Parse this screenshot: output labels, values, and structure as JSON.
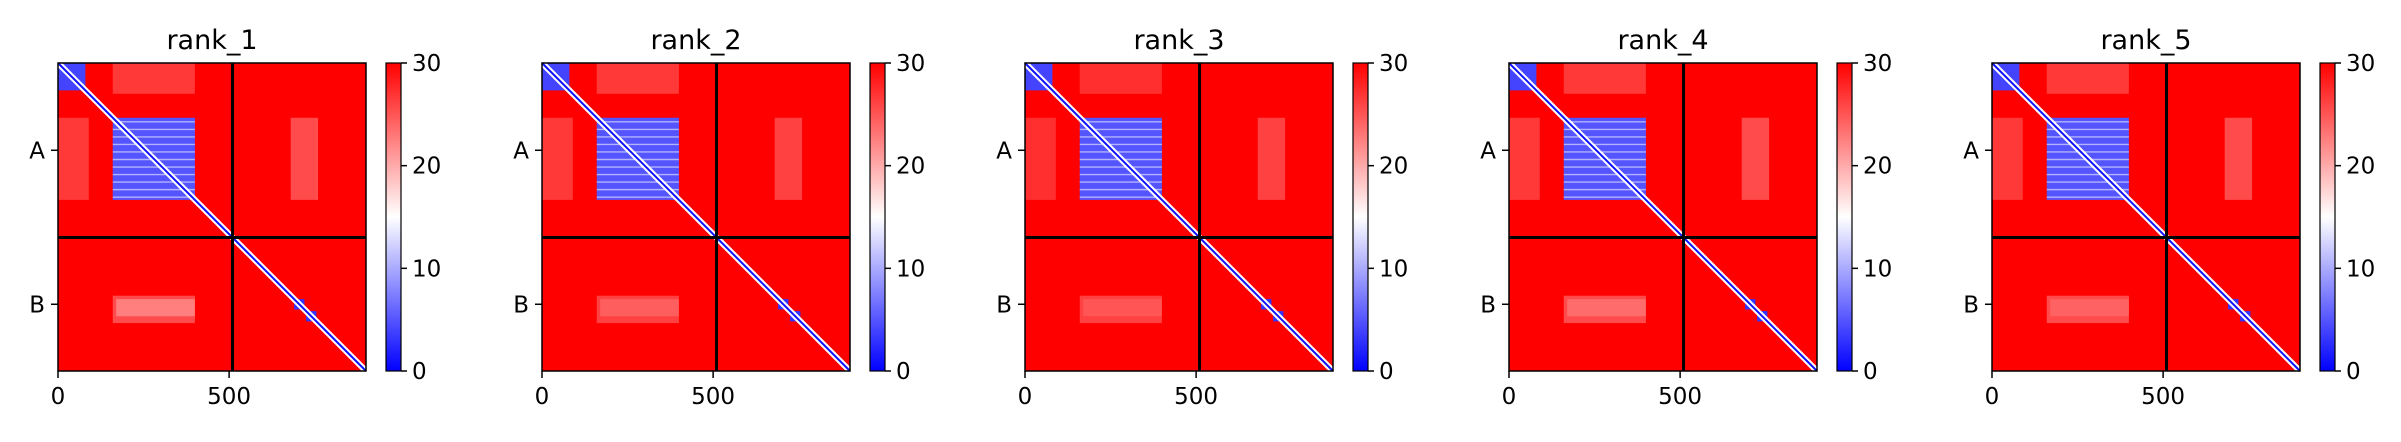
{
  "chart_data": {
    "type": "heatmap",
    "description_scale": "PAE matrix per rank; colorbar 0 (blue) to 30 (red)",
    "colors": {
      "low": "#0000ff",
      "mid": "#ffffff",
      "high": "#ff0000",
      "divider": "#000000"
    },
    "vmin": 0,
    "vmax": 30,
    "colorbar_ticks": [
      "0",
      "10",
      "20",
      "30"
    ],
    "colorbar_tick_values": [
      0,
      10,
      20,
      30
    ],
    "x_ticks": [
      "0",
      "500"
    ],
    "x_tick_values": [
      0,
      500
    ],
    "axis_range": [
      0,
      900
    ],
    "chain_break": 510,
    "y_labels": [
      "A",
      "B"
    ],
    "y_label_positions": [
      255,
      705
    ],
    "panels": [
      {
        "title": "rank_1",
        "blocks": [
          {
            "x": [
              0,
              80
            ],
            "y": [
              0,
              80
            ],
            "value": 4
          },
          {
            "x": [
              160,
              400
            ],
            "y": [
              160,
              400
            ],
            "value": 5
          },
          {
            "x": [
              690,
              720
            ],
            "y": [
              690,
              720
            ],
            "value": 3
          },
          {
            "x": [
              725,
              755
            ],
            "y": [
              725,
              755
            ],
            "value": 3
          }
        ],
        "lighter": [
          {
            "x": [
              160,
              400
            ],
            "y": [
              0,
              90
            ],
            "value": 24
          },
          {
            "x": [
              0,
              90
            ],
            "y": [
              160,
              400
            ],
            "value": 24
          },
          {
            "x": [
              680,
              760
            ],
            "y": [
              160,
              400
            ],
            "value": 22
          },
          {
            "x": [
              160,
              400
            ],
            "y": [
              680,
              760
            ],
            "value": 22
          },
          {
            "x": [
              170,
              400
            ],
            "y": [
              690,
              740
            ],
            "value": 20
          }
        ]
      },
      {
        "title": "rank_2",
        "blocks": [
          {
            "x": [
              0,
              80
            ],
            "y": [
              0,
              80
            ],
            "value": 4
          },
          {
            "x": [
              160,
              400
            ],
            "y": [
              160,
              400
            ],
            "value": 5
          },
          {
            "x": [
              690,
              720
            ],
            "y": [
              690,
              720
            ],
            "value": 3
          },
          {
            "x": [
              725,
              755
            ],
            "y": [
              725,
              755
            ],
            "value": 3
          }
        ],
        "lighter": [
          {
            "x": [
              160,
              400
            ],
            "y": [
              0,
              90
            ],
            "value": 24
          },
          {
            "x": [
              0,
              90
            ],
            "y": [
              160,
              400
            ],
            "value": 24
          },
          {
            "x": [
              680,
              760
            ],
            "y": [
              160,
              400
            ],
            "value": 23
          },
          {
            "x": [
              160,
              400
            ],
            "y": [
              680,
              760
            ],
            "value": 23
          },
          {
            "x": [
              170,
              400
            ],
            "y": [
              690,
              740
            ],
            "value": 23
          }
        ]
      },
      {
        "title": "rank_3",
        "blocks": [
          {
            "x": [
              0,
              80
            ],
            "y": [
              0,
              80
            ],
            "value": 4
          },
          {
            "x": [
              160,
              400
            ],
            "y": [
              160,
              400
            ],
            "value": 5
          },
          {
            "x": [
              690,
              720
            ],
            "y": [
              690,
              720
            ],
            "value": 3
          },
          {
            "x": [
              725,
              755
            ],
            "y": [
              725,
              755
            ],
            "value": 3
          }
        ],
        "lighter": [
          {
            "x": [
              160,
              400
            ],
            "y": [
              0,
              90
            ],
            "value": 25
          },
          {
            "x": [
              0,
              90
            ],
            "y": [
              160,
              400
            ],
            "value": 25
          },
          {
            "x": [
              680,
              760
            ],
            "y": [
              160,
              400
            ],
            "value": 23
          },
          {
            "x": [
              160,
              400
            ],
            "y": [
              680,
              760
            ],
            "value": 23
          },
          {
            "x": [
              170,
              400
            ],
            "y": [
              690,
              740
            ],
            "value": 24
          }
        ]
      },
      {
        "title": "rank_4",
        "blocks": [
          {
            "x": [
              0,
              80
            ],
            "y": [
              0,
              80
            ],
            "value": 4
          },
          {
            "x": [
              160,
              400
            ],
            "y": [
              160,
              400
            ],
            "value": 5
          },
          {
            "x": [
              690,
              720
            ],
            "y": [
              690,
              720
            ],
            "value": 3
          },
          {
            "x": [
              725,
              755
            ],
            "y": [
              725,
              755
            ],
            "value": 3
          }
        ],
        "lighter": [
          {
            "x": [
              160,
              400
            ],
            "y": [
              0,
              90
            ],
            "value": 24
          },
          {
            "x": [
              0,
              90
            ],
            "y": [
              160,
              400
            ],
            "value": 24
          },
          {
            "x": [
              680,
              760
            ],
            "y": [
              160,
              400
            ],
            "value": 22
          },
          {
            "x": [
              160,
              400
            ],
            "y": [
              680,
              760
            ],
            "value": 22
          },
          {
            "x": [
              170,
              400
            ],
            "y": [
              690,
              740
            ],
            "value": 22
          }
        ]
      },
      {
        "title": "rank_5",
        "blocks": [
          {
            "x": [
              0,
              80
            ],
            "y": [
              0,
              80
            ],
            "value": 4
          },
          {
            "x": [
              160,
              400
            ],
            "y": [
              160,
              400
            ],
            "value": 5
          },
          {
            "x": [
              690,
              720
            ],
            "y": [
              690,
              720
            ],
            "value": 3
          },
          {
            "x": [
              725,
              755
            ],
            "y": [
              725,
              755
            ],
            "value": 3
          }
        ],
        "lighter": [
          {
            "x": [
              160,
              400
            ],
            "y": [
              0,
              90
            ],
            "value": 24
          },
          {
            "x": [
              0,
              90
            ],
            "y": [
              160,
              400
            ],
            "value": 24
          },
          {
            "x": [
              680,
              760
            ],
            "y": [
              160,
              400
            ],
            "value": 22
          },
          {
            "x": [
              160,
              400
            ],
            "y": [
              680,
              760
            ],
            "value": 22
          },
          {
            "x": [
              170,
              400
            ],
            "y": [
              690,
              740
            ],
            "value": 23
          }
        ]
      }
    ]
  }
}
